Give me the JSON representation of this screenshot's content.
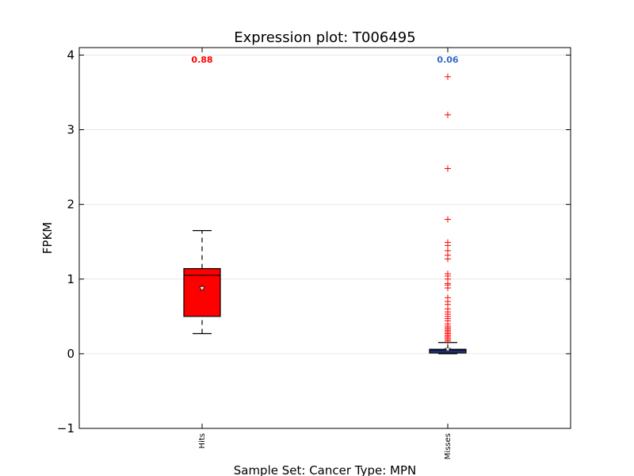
{
  "chart_data": {
    "type": "box",
    "title": "Expression plot: T006495",
    "xlabel": "Sample Set: Cancer Type: MPN",
    "ylabel": "FPKM",
    "ylim": [
      -1,
      4.1
    ],
    "yticks": [
      -1,
      0,
      1,
      2,
      3,
      4
    ],
    "grid": "horizontal",
    "categories": [
      "Hits",
      "Misses"
    ],
    "boxes": [
      {
        "name": "Hits",
        "whisker_low": 0.27,
        "q1": 0.5,
        "median": 1.05,
        "q3": 1.14,
        "whisker_high": 1.65,
        "mean": 0.88,
        "mean_label": "0.88",
        "fill": "#ff0000",
        "label_color": "#ff0000",
        "outliers": []
      },
      {
        "name": "Misses",
        "whisker_low": 0.0,
        "q1": 0.01,
        "median": 0.04,
        "q3": 0.06,
        "whisker_high": 0.15,
        "mean": 0.06,
        "mean_label": "0.06",
        "fill": "#3344aa",
        "label_color": "#3366cc",
        "outliers": [
          3.71,
          3.2,
          2.48,
          1.8,
          1.49,
          1.45,
          1.38,
          1.32,
          1.27,
          1.07,
          1.04,
          1.0,
          0.94,
          0.92,
          0.88,
          0.75,
          0.7,
          0.66,
          0.6,
          0.56,
          0.53,
          0.5,
          0.47,
          0.44,
          0.4,
          0.37,
          0.35,
          0.33,
          0.31,
          0.29,
          0.27,
          0.25,
          0.23,
          0.21,
          0.19,
          0.17
        ]
      }
    ],
    "outlier_color": "#ff0000"
  }
}
